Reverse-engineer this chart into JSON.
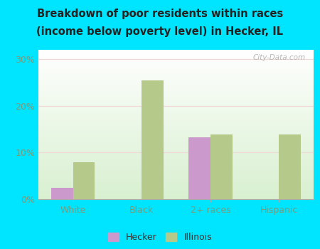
{
  "title_line1": "Breakdown of poor residents within races",
  "title_line2": "(income below poverty level) in Hecker, IL",
  "categories": [
    "White",
    "Black",
    "2+ races",
    "Hispanic"
  ],
  "hecker_values": [
    2.5,
    0,
    13.2,
    0
  ],
  "illinois_values": [
    8.0,
    25.5,
    13.8,
    13.8
  ],
  "hecker_color": "#cc99cc",
  "illinois_color": "#b5c98a",
  "ylim": [
    0,
    32
  ],
  "yticks": [
    0,
    10,
    20,
    30
  ],
  "yticklabels": [
    "0%",
    "10%",
    "20%",
    "30%"
  ],
  "plot_bg_top": "#ffffff",
  "plot_bg_bottom": "#d8f0d0",
  "outer_background": "#00e5ff",
  "bar_width": 0.32,
  "legend_labels": [
    "Hecker",
    "Illinois"
  ],
  "watermark": "City-Data.com",
  "title_color": "#222222",
  "tick_color": "#7a9a7a",
  "grid_color": "#e8e8e8"
}
